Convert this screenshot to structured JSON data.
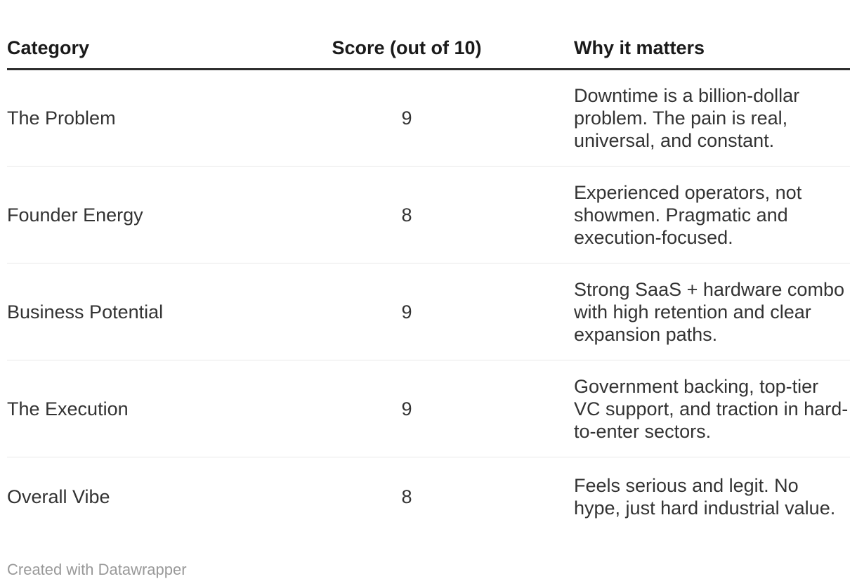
{
  "chart_data": {
    "type": "table",
    "columns": [
      {
        "label": "Category",
        "align": "left"
      },
      {
        "label": "Score (out of 10)",
        "align": "center"
      },
      {
        "label": "Why it matters",
        "align": "left"
      }
    ],
    "rows": [
      {
        "category": "The Problem",
        "score": "9",
        "why": "Downtime is a billion-dollar problem. The pain is real, universal, and constant."
      },
      {
        "category": "Founder Energy",
        "score": "8",
        "why": "Experienced operators, not showmen. Pragmatic and execution-focused."
      },
      {
        "category": "Business Potential",
        "score": "9",
        "why": "Strong SaaS + hardware combo with high retention and clear expansion paths."
      },
      {
        "category": "The Execution",
        "score": "9",
        "why": "Government backing, top-tier VC support, and traction in hard-to-enter sectors."
      },
      {
        "category": "Overall Vibe",
        "score": "8",
        "why": "Feels serious and legit. No hype, just hard industrial value."
      }
    ],
    "title": "",
    "grid": "horizontal-dividers",
    "legend_position": "none"
  },
  "footer": {
    "attribution": "Created with Datawrapper"
  },
  "colors": {
    "background": "#ffffff",
    "header_text": "#1a1a1a",
    "body_text": "#333333",
    "header_rule": "#2e2e2e",
    "row_divider": "#e8e8e8",
    "attribution_text": "#999999"
  }
}
